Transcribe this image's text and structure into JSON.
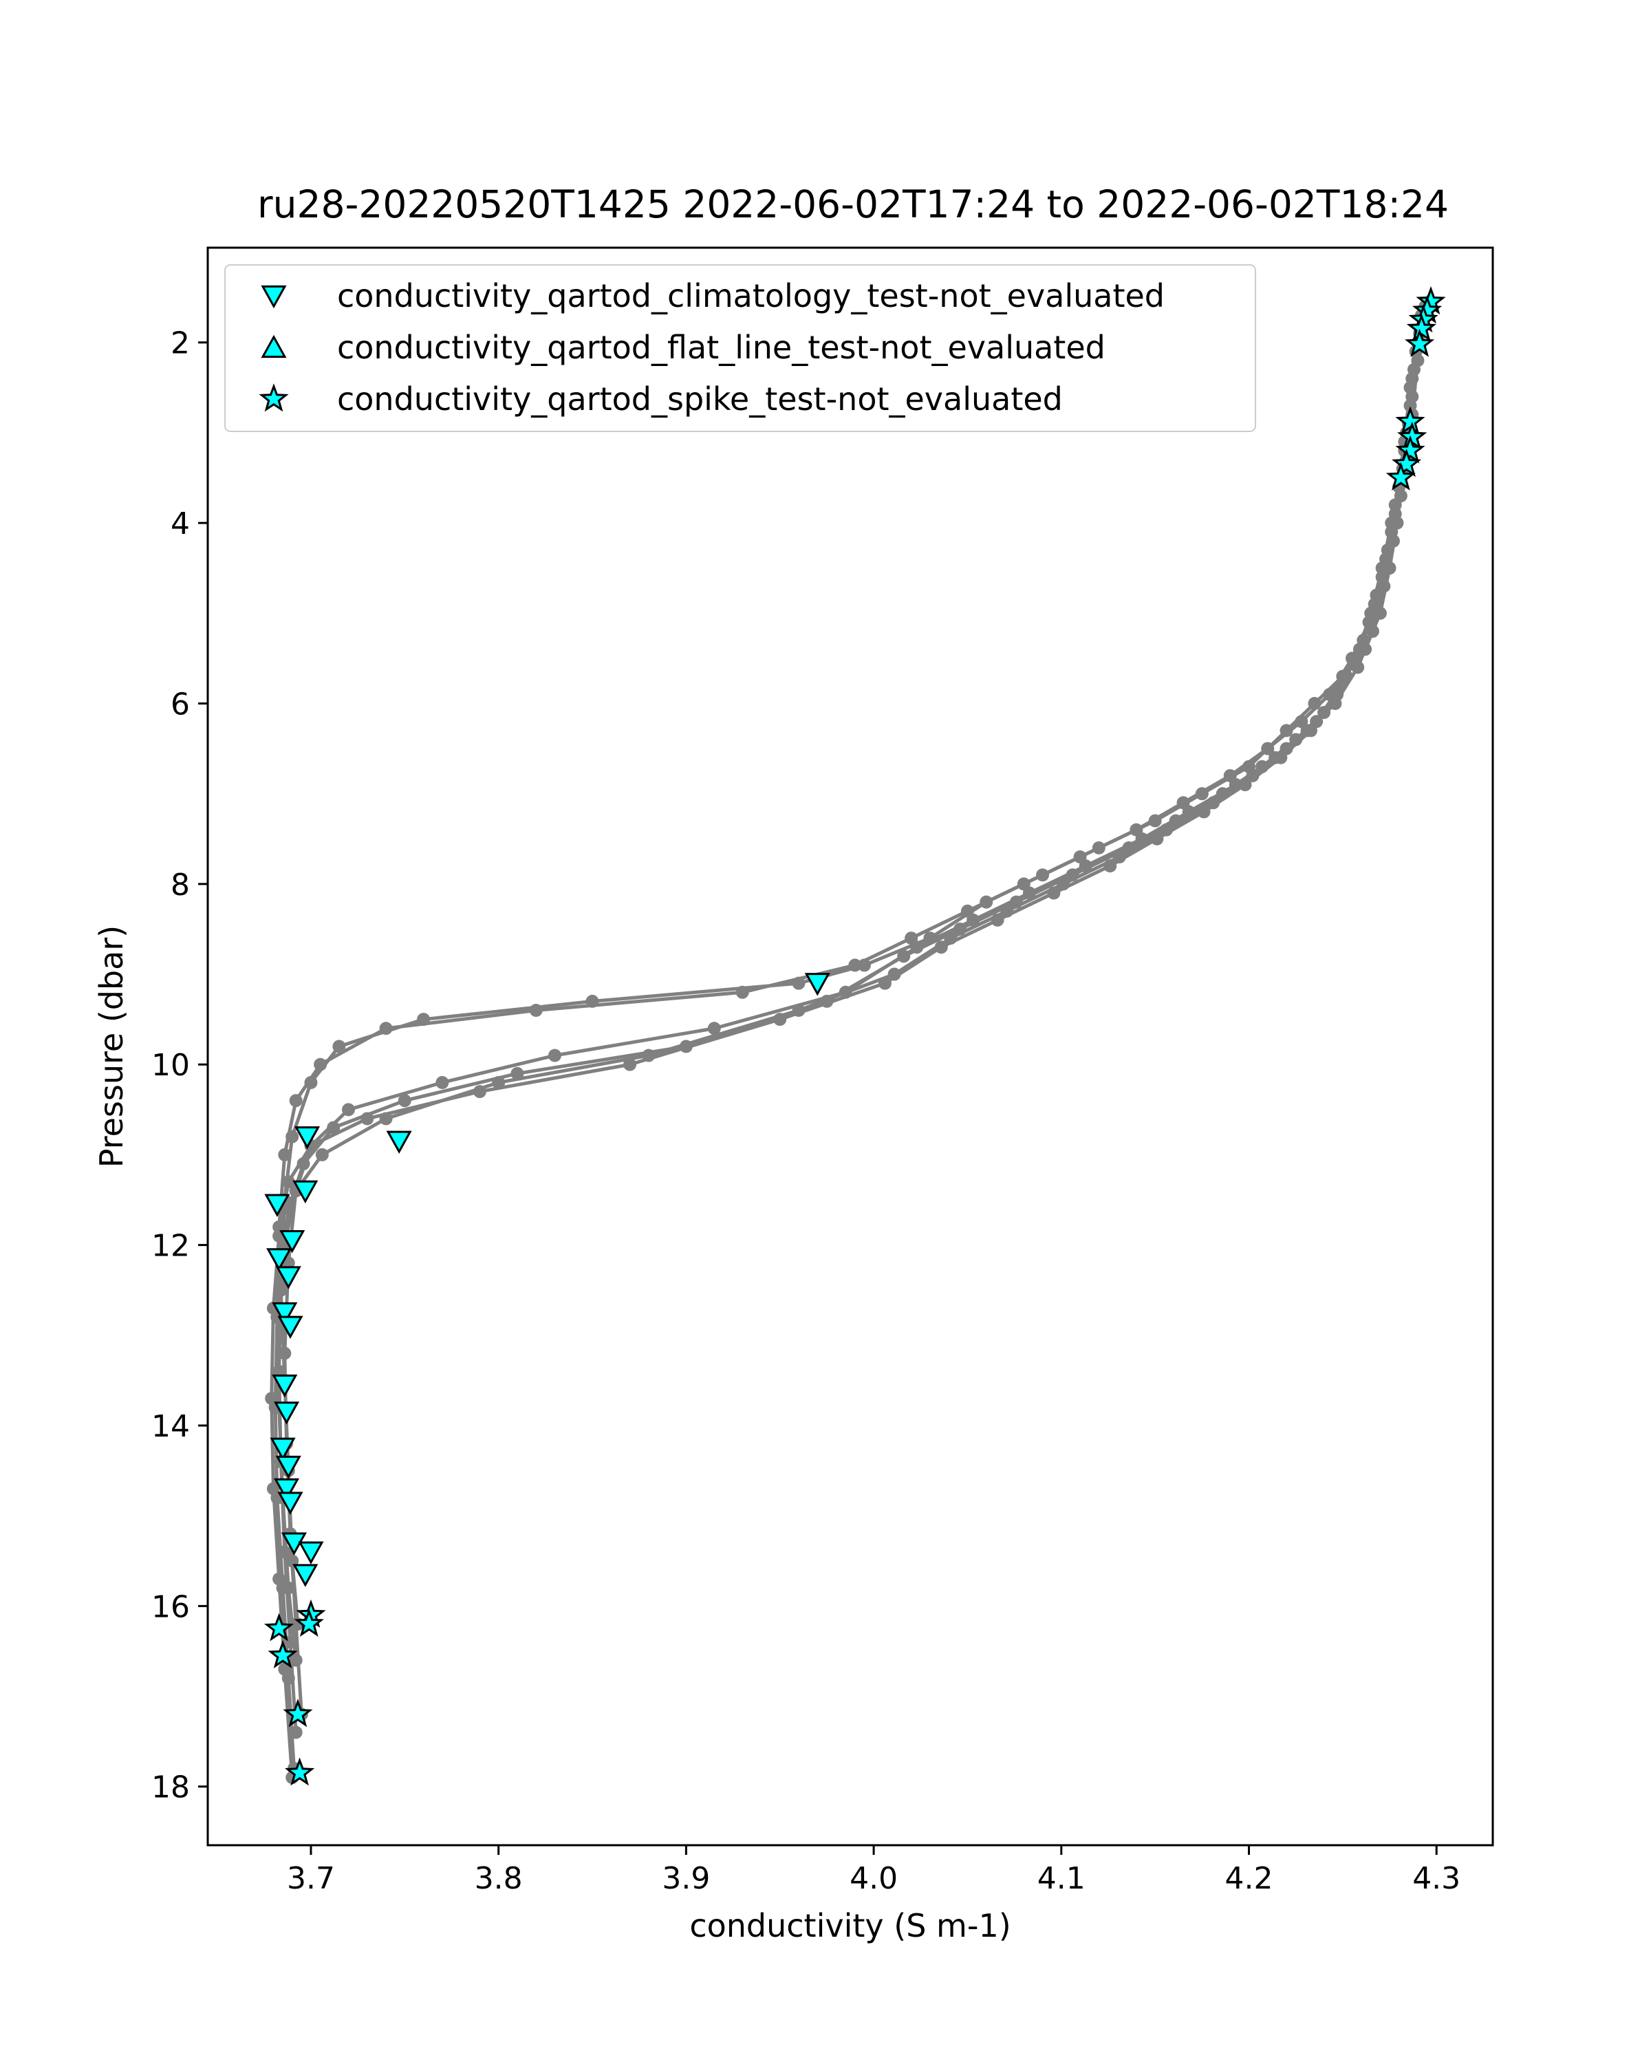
{
  "chart_data": {
    "type": "scatter",
    "title": "ru28-20220520T1425 2022-06-02T17:24 to 2022-06-02T18:24",
    "xlabel": "conductivity (S m-1)",
    "ylabel": "Pressure (dbar)",
    "xlim": [
      3.645,
      4.33
    ],
    "ylim": [
      18.65,
      0.95
    ],
    "y_inverted": true,
    "x_ticks": [
      3.7,
      3.8,
      3.9,
      4.0,
      4.1,
      4.2,
      4.3
    ],
    "x_tick_labels": [
      "3.7",
      "3.8",
      "3.9",
      "4.0",
      "4.1",
      "4.2",
      "4.3"
    ],
    "y_ticks": [
      2,
      4,
      6,
      8,
      10,
      12,
      14,
      16,
      18
    ],
    "y_tick_labels": [
      "2",
      "4",
      "6",
      "8",
      "10",
      "12",
      "14",
      "16",
      "18"
    ],
    "grid": false,
    "legend_position": "top-left",
    "profile_color": "#808080",
    "marker_fill": "#00ffff",
    "marker_edge": "#000000",
    "profiles": [
      {
        "x": [
          4.294,
          4.291,
          4.287,
          4.284,
          4.281,
          4.279,
          4.275,
          4.27,
          4.262,
          4.25,
          4.235,
          4.22,
          4.2,
          4.175,
          4.15,
          4.12,
          4.09,
          4.06,
          4.03,
          3.995,
          3.96,
          3.85,
          3.76,
          3.715,
          3.7,
          3.69,
          3.686,
          3.684,
          3.686,
          3.688,
          3.69,
          3.693
        ],
        "y": [
          1.6,
          2.0,
          2.6,
          3.1,
          3.5,
          4.0,
          4.5,
          5.0,
          5.4,
          5.7,
          6.0,
          6.3,
          6.7,
          7.0,
          7.3,
          7.6,
          7.9,
          8.2,
          8.6,
          8.9,
          9.1,
          9.3,
          9.5,
          9.8,
          10.2,
          10.8,
          11.5,
          12.5,
          13.5,
          14.5,
          15.5,
          16.2
        ]
      },
      {
        "x": [
          4.292,
          4.289,
          4.286,
          4.283,
          4.28,
          4.276,
          4.271,
          4.264,
          4.255,
          4.243,
          4.228,
          4.21,
          4.19,
          4.165,
          4.14,
          4.11,
          4.08,
          4.05,
          4.02,
          3.99,
          3.93,
          3.82,
          3.74,
          3.705,
          3.692,
          3.686,
          3.683,
          3.682,
          3.683,
          3.685,
          3.688,
          3.692
        ],
        "y": [
          1.7,
          2.1,
          2.7,
          3.2,
          3.6,
          4.1,
          4.6,
          5.1,
          5.5,
          5.9,
          6.2,
          6.5,
          6.8,
          7.1,
          7.4,
          7.7,
          8.0,
          8.3,
          8.6,
          8.9,
          9.2,
          9.4,
          9.6,
          10.0,
          10.4,
          11.0,
          11.8,
          12.8,
          13.8,
          14.8,
          15.8,
          16.6
        ]
      },
      {
        "x": [
          4.293,
          4.29,
          4.287,
          4.284,
          4.281,
          4.277,
          4.272,
          4.266,
          4.258,
          4.246,
          4.231,
          4.214,
          4.193,
          4.168,
          4.143,
          4.113,
          4.083,
          4.053,
          4.023,
          3.985,
          3.915,
          3.83,
          3.77,
          3.72,
          3.7,
          3.692,
          3.688,
          3.686,
          3.687,
          3.689,
          3.692,
          3.695
        ],
        "y": [
          1.8,
          2.2,
          2.8,
          3.3,
          3.7,
          4.2,
          4.7,
          5.2,
          5.6,
          6.0,
          6.3,
          6.6,
          6.9,
          7.2,
          7.5,
          7.8,
          8.1,
          8.4,
          8.7,
          9.2,
          9.6,
          9.9,
          10.2,
          10.5,
          10.9,
          11.4,
          12.2,
          13.2,
          14.2,
          15.2,
          16.2,
          17.2
        ]
      },
      {
        "x": [
          4.291,
          4.288,
          4.285,
          4.282,
          4.278,
          4.274,
          4.268,
          4.261,
          4.252,
          4.24,
          4.225,
          4.207,
          4.186,
          4.161,
          4.136,
          4.106,
          4.076,
          4.046,
          4.016,
          3.975,
          3.9,
          3.81,
          3.75,
          3.712,
          3.696,
          3.688,
          3.684,
          3.683,
          3.684,
          3.686,
          3.689,
          3.692
        ],
        "y": [
          1.9,
          2.3,
          2.9,
          3.4,
          3.8,
          4.3,
          4.8,
          5.3,
          5.7,
          6.1,
          6.4,
          6.7,
          7.0,
          7.3,
          7.6,
          7.9,
          8.2,
          8.5,
          8.8,
          9.3,
          9.8,
          10.1,
          10.4,
          10.7,
          11.1,
          11.6,
          12.4,
          13.4,
          14.4,
          15.4,
          16.4,
          17.4
        ]
      },
      {
        "x": [
          4.29,
          4.287,
          4.284,
          4.281,
          4.278,
          4.273,
          4.267,
          4.259,
          4.249,
          4.236,
          4.22,
          4.202,
          4.181,
          4.156,
          4.131,
          4.101,
          4.071,
          4.041,
          4.011,
          3.96,
          3.88,
          3.8,
          3.74,
          3.706,
          3.692,
          3.686,
          3.682,
          3.681,
          3.682,
          3.685,
          3.688,
          3.691
        ],
        "y": [
          2.0,
          2.4,
          3.0,
          3.5,
          3.9,
          4.4,
          4.9,
          5.4,
          5.8,
          6.2,
          6.5,
          6.8,
          7.1,
          7.4,
          7.7,
          8.0,
          8.3,
          8.6,
          9.0,
          9.4,
          9.9,
          10.2,
          10.6,
          11.0,
          11.4,
          12.0,
          12.8,
          13.8,
          14.8,
          15.8,
          16.8,
          17.8
        ]
      },
      {
        "x": [
          4.289,
          4.286,
          4.283,
          4.28,
          4.276,
          4.271,
          4.265,
          4.257,
          4.247,
          4.233,
          4.217,
          4.198,
          4.176,
          4.151,
          4.126,
          4.096,
          4.066,
          4.036,
          4.006,
          3.95,
          3.87,
          3.79,
          3.73,
          3.7,
          3.688,
          3.683,
          3.68,
          3.679,
          3.68,
          3.683,
          3.686,
          3.69
        ],
        "y": [
          2.1,
          2.5,
          3.1,
          3.6,
          4.0,
          4.5,
          5.0,
          5.5,
          5.9,
          6.3,
          6.6,
          6.9,
          7.2,
          7.5,
          7.8,
          8.1,
          8.4,
          8.7,
          9.1,
          9.5,
          10.0,
          10.3,
          10.6,
          10.9,
          11.3,
          11.9,
          12.7,
          13.7,
          14.7,
          15.7,
          16.7,
          17.9
        ]
      }
    ],
    "series": [
      {
        "name": "conductivity_qartod_climatology_test-not_evaluated",
        "marker": "triangle-down",
        "x": [
          3.97,
          3.747,
          3.698,
          3.697,
          3.682,
          3.69,
          3.683,
          3.688,
          3.686,
          3.689,
          3.686,
          3.687,
          3.685,
          3.688,
          3.687,
          3.689,
          3.691,
          3.7,
          3.697
        ],
        "y": [
          9.1,
          10.85,
          10.8,
          11.4,
          11.55,
          11.95,
          12.15,
          12.35,
          12.75,
          12.9,
          13.55,
          13.85,
          14.25,
          14.45,
          14.7,
          14.85,
          15.3,
          15.4,
          15.65
        ]
      },
      {
        "name": "conductivity_qartod_flat_line_test-not_evaluated",
        "marker": "triangle-up",
        "x": [],
        "y": []
      },
      {
        "name": "conductivity_qartod_spike_test-not_evaluated",
        "marker": "star",
        "x": [
          4.297,
          4.295,
          4.293,
          4.292,
          4.291,
          4.286,
          4.287,
          4.286,
          4.284,
          4.281,
          3.7,
          3.699,
          3.683,
          3.685,
          3.693,
          3.694
        ],
        "y": [
          1.55,
          1.65,
          1.75,
          1.85,
          2.02,
          2.88,
          3.05,
          3.2,
          3.35,
          3.5,
          16.1,
          16.2,
          16.25,
          16.55,
          17.2,
          17.85
        ]
      }
    ]
  }
}
